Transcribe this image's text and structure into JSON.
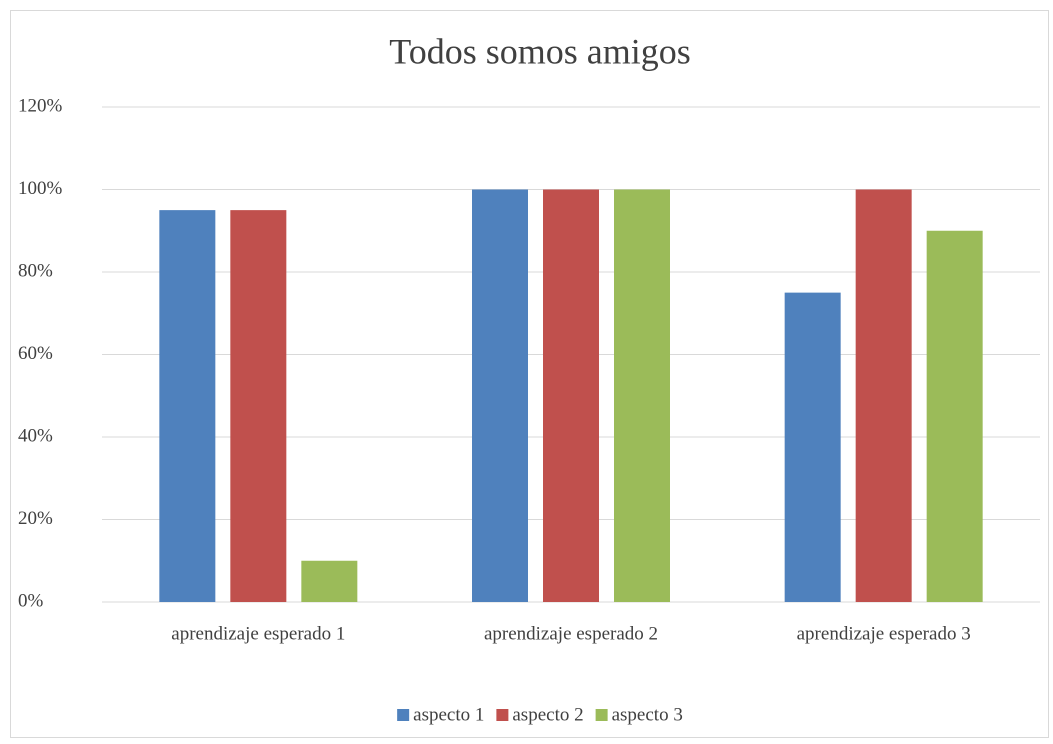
{
  "chart_data": {
    "type": "bar",
    "title": "Todos somos amigos",
    "categories": [
      "aprendizaje esperado 1",
      "aprendizaje esperado 2",
      "aprendizaje esperado 3"
    ],
    "series": [
      {
        "name": "aspecto 1",
        "color": "#4f81bd",
        "values": [
          95,
          100,
          75
        ]
      },
      {
        "name": "aspecto 2",
        "color": "#c0504d",
        "values": [
          95,
          100,
          100
        ]
      },
      {
        "name": "aspecto 3",
        "color": "#9bbb59",
        "values": [
          10,
          100,
          90
        ]
      }
    ],
    "ylim": [
      0,
      120
    ],
    "yticks": [
      {
        "value": 0,
        "label": "0%"
      },
      {
        "value": 20,
        "label": "20%"
      },
      {
        "value": 40,
        "label": "40%"
      },
      {
        "value": 60,
        "label": "60%"
      },
      {
        "value": 80,
        "label": "80%"
      },
      {
        "value": 100,
        "label": "100%"
      },
      {
        "value": 120,
        "label": "120%"
      }
    ],
    "grid": true,
    "legend": "bottom"
  }
}
